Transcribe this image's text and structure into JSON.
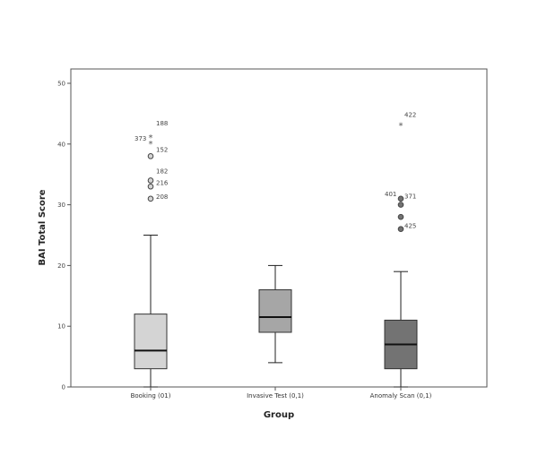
{
  "chart_data": {
    "type": "boxplot",
    "xlabel": "Group",
    "ylabel": "BAI Total Score",
    "ylim": [
      0,
      50
    ],
    "yticks": [
      0,
      10,
      20,
      30,
      40,
      50
    ],
    "ytick_labels": [
      "0",
      "10",
      "20",
      "30",
      "40",
      "50"
    ],
    "grid": false,
    "groups": [
      {
        "label": "Booking (01)",
        "color": "#d4d4d4",
        "min": 0,
        "q1": 3,
        "median": 6,
        "q3": 12,
        "max": 25,
        "outliers": [
          {
            "id": "188",
            "value": 41,
            "marker": "star"
          },
          {
            "id": "373",
            "value": 40,
            "marker": "star"
          },
          {
            "id": "152",
            "value": 38,
            "marker": "circle"
          },
          {
            "id": "182",
            "value": 34,
            "marker": "circle"
          },
          {
            "id": "216",
            "value": 33,
            "marker": "circle"
          },
          {
            "id": "208",
            "value": 31,
            "marker": "circle"
          }
        ]
      },
      {
        "label": "Invasive Test (0,1)",
        "color": "#a6a6a6",
        "min": 4,
        "q1": 9,
        "median": 11.5,
        "q3": 16,
        "max": 20,
        "outliers": []
      },
      {
        "label": "Anomaly Scan (0,1)",
        "color": "#737373",
        "min": 0,
        "q1": 3,
        "median": 7,
        "q3": 11,
        "max": 19,
        "outliers": [
          {
            "id": "422",
            "value": 43,
            "marker": "star"
          },
          {
            "id": "401",
            "value": 31,
            "marker": "circle"
          },
          {
            "id": "371",
            "value": 30,
            "marker": "circle"
          },
          {
            "id": "",
            "value": 28,
            "marker": "circle"
          },
          {
            "id": "425",
            "value": 26,
            "marker": "circle"
          }
        ]
      }
    ]
  }
}
